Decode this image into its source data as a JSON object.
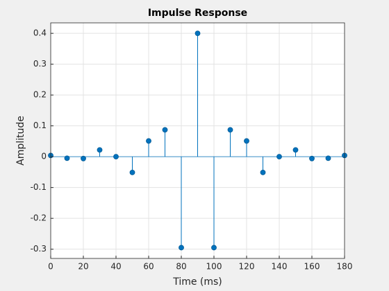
{
  "chart_data": {
    "type": "stem",
    "title": "Impulse Response",
    "x_label": "Time (ms)",
    "y_label": "Amplitude",
    "x": [
      0,
      10,
      20,
      30,
      40,
      50,
      60,
      70,
      80,
      90,
      100,
      110,
      120,
      130,
      140,
      150,
      160,
      170,
      180
    ],
    "values": [
      0.004,
      -0.005,
      -0.006,
      0.022,
      0.0,
      -0.051,
      0.051,
      0.087,
      -0.295,
      0.4,
      -0.295,
      0.087,
      0.051,
      -0.051,
      0.0,
      0.022,
      -0.006,
      -0.005,
      0.004
    ],
    "color": "#0072bd",
    "xlim": [
      0,
      180
    ],
    "xticks": [
      0,
      20,
      40,
      60,
      80,
      100,
      120,
      140,
      160,
      180
    ],
    "ylim": [
      -0.33,
      0.434
    ],
    "yticks": [
      -0.3,
      -0.2,
      -0.1,
      0,
      0.1,
      0.2,
      0.3,
      0.4
    ],
    "grid": true
  }
}
